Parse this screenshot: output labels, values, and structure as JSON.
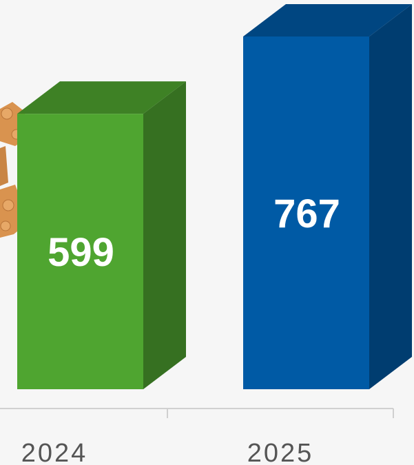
{
  "chart_data": {
    "type": "bar3d",
    "categories": [
      "2024",
      "2025"
    ],
    "values": [
      599,
      767
    ],
    "colors": [
      "#4fa530",
      "#005aa5"
    ]
  }
}
